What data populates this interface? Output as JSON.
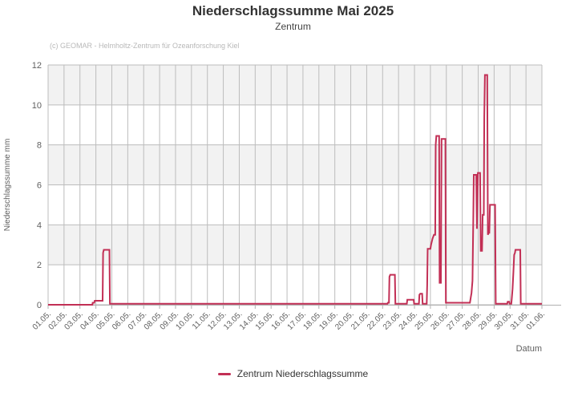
{
  "header": {
    "title": "Niederschlagssumme Mai 2025",
    "subtitle": "Zentrum",
    "credit": "(c) GEOMAR - Helmholtz-Zentrum für Ozeanforschung Kiel"
  },
  "legend": {
    "label": "Zentrum Niederschlagssumme"
  },
  "colors": {
    "series": "#c22f55",
    "grid": "#bcbcbc",
    "band": "#f2f2f2",
    "axis_text": "#606060",
    "axis_line": "#b0b0b0"
  },
  "chart_data": {
    "type": "line",
    "step": true,
    "title": "Niederschlagssumme Mai 2025",
    "subtitle": "Zentrum",
    "xlabel": "Datum",
    "ylabel": "Niederschlagssumme mm",
    "ylim": [
      0,
      12
    ],
    "y_ticks": [
      0,
      2,
      4,
      6,
      8,
      10,
      12
    ],
    "bands": [
      [
        2,
        4
      ],
      [
        6,
        8
      ],
      [
        10,
        12
      ]
    ],
    "x_range_days": [
      0,
      31
    ],
    "x_tick_labels": [
      "01.05.",
      "02.05.",
      "03.05.",
      "04.05.",
      "05.05.",
      "06.05.",
      "07.05.",
      "08.05.",
      "09.05.",
      "10.05.",
      "11.05.",
      "12.05.",
      "13.05.",
      "14.05.",
      "15.05.",
      "16.05.",
      "17.05.",
      "18.05.",
      "19.05.",
      "20.05.",
      "21.05.",
      "22.05.",
      "23.05.",
      "24.05.",
      "25.05.",
      "26.05.",
      "27.05.",
      "28.05.",
      "29.05.",
      "30.05.",
      "31.05.",
      "01.06."
    ],
    "grid": true,
    "legend_position": "bottom",
    "series": [
      {
        "name": "Zentrum Niederschlagssumme",
        "unit": "mm",
        "points": [
          [
            0,
            0
          ],
          [
            2.78,
            0
          ],
          [
            2.8,
            0.1
          ],
          [
            2.9,
            0.1
          ],
          [
            2.93,
            0.2
          ],
          [
            3.42,
            0.2
          ],
          [
            3.45,
            2.6
          ],
          [
            3.5,
            2.75
          ],
          [
            3.85,
            2.75
          ],
          [
            3.88,
            0.05
          ],
          [
            21.3,
            0.05
          ],
          [
            21.33,
            0.1
          ],
          [
            21.4,
            0.1
          ],
          [
            21.43,
            1.4
          ],
          [
            21.48,
            1.5
          ],
          [
            21.77,
            1.5
          ],
          [
            21.8,
            0.05
          ],
          [
            22.52,
            0.05
          ],
          [
            22.55,
            0.25
          ],
          [
            22.95,
            0.25
          ],
          [
            22.98,
            0.05
          ],
          [
            23.28,
            0.05
          ],
          [
            23.31,
            0.5
          ],
          [
            23.36,
            0.55
          ],
          [
            23.48,
            0.55
          ],
          [
            23.51,
            0.05
          ],
          [
            23.77,
            0.05
          ],
          [
            23.8,
            1.0
          ],
          [
            23.83,
            2.8
          ],
          [
            24.0,
            2.8
          ],
          [
            24.04,
            3.0
          ],
          [
            24.13,
            3.3
          ],
          [
            24.22,
            3.5
          ],
          [
            24.3,
            3.5
          ],
          [
            24.33,
            8.0
          ],
          [
            24.37,
            8.45
          ],
          [
            24.55,
            8.45
          ],
          [
            24.58,
            1.1
          ],
          [
            24.66,
            1.1
          ],
          [
            24.7,
            8.3
          ],
          [
            24.94,
            8.3
          ],
          [
            24.97,
            0.1
          ],
          [
            26.48,
            0.1
          ],
          [
            26.52,
            0.3
          ],
          [
            26.58,
            0.6
          ],
          [
            26.64,
            1.2
          ],
          [
            26.69,
            4.3
          ],
          [
            26.72,
            6.5
          ],
          [
            26.88,
            6.5
          ],
          [
            26.92,
            3.8
          ],
          [
            26.98,
            6.6
          ],
          [
            27.12,
            6.6
          ],
          [
            27.16,
            2.7
          ],
          [
            27.24,
            2.7
          ],
          [
            27.28,
            4.5
          ],
          [
            27.35,
            4.5
          ],
          [
            27.38,
            9.4
          ],
          [
            27.42,
            11.5
          ],
          [
            27.57,
            11.5
          ],
          [
            27.61,
            3.5
          ],
          [
            27.66,
            3.6
          ],
          [
            27.7,
            3.6
          ],
          [
            27.74,
            5.0
          ],
          [
            28.06,
            5.0
          ],
          [
            28.1,
            0.05
          ],
          [
            28.82,
            0.05
          ],
          [
            28.85,
            0.15
          ],
          [
            28.94,
            0.15
          ],
          [
            28.97,
            0.05
          ],
          [
            29.08,
            0.05
          ],
          [
            29.11,
            0.3
          ],
          [
            29.16,
            0.8
          ],
          [
            29.21,
            1.6
          ],
          [
            29.26,
            2.5
          ],
          [
            29.31,
            2.6
          ],
          [
            29.34,
            2.75
          ],
          [
            29.64,
            2.75
          ],
          [
            29.67,
            0.05
          ],
          [
            31,
            0.05
          ]
        ]
      }
    ]
  }
}
